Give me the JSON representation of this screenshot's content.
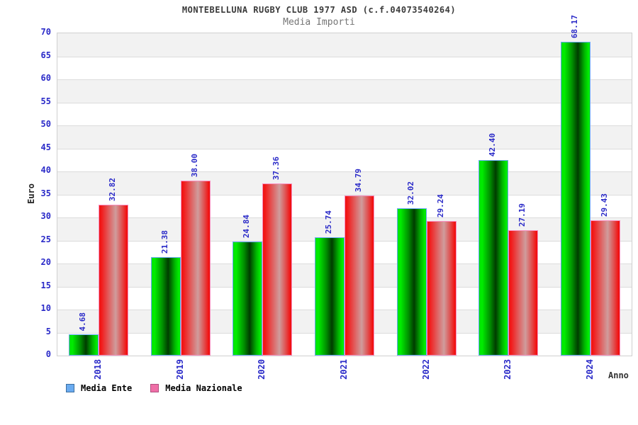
{
  "header": {
    "title": "MONTEBELLUNA RUGBY CLUB 1977 ASD (c.f.04073540264)",
    "subtitle": "Media Importi"
  },
  "chart_data": {
    "type": "bar",
    "title": "MONTEBELLUNA RUGBY CLUB 1977 ASD (c.f.04073540264)",
    "subtitle": "Media Importi",
    "xlabel": "Anno",
    "ylabel": "Euro",
    "ylim": [
      0,
      70
    ],
    "ytick_step": 5,
    "yticks": [
      "0",
      "5",
      "10",
      "15",
      "20",
      "25",
      "30",
      "35",
      "40",
      "45",
      "50",
      "55",
      "60",
      "65",
      "70"
    ],
    "grid": true,
    "plot_bands": "alternating gray/white horizontal bands every 5 units",
    "legend_position": "bottom-left",
    "categories": [
      "2018",
      "2019",
      "2020",
      "2021",
      "2022",
      "2023",
      "2024"
    ],
    "series": [
      {
        "name": "Media Ente",
        "values": [
          4.68,
          21.38,
          24.84,
          25.74,
          32.02,
          42.4,
          68.17
        ],
        "labels": [
          "4.68",
          "21.38",
          "24.84",
          "25.74",
          "32.02",
          "42.40",
          "68.17"
        ],
        "bar_style": "green",
        "legend_color": "#6aabf0",
        "legend_border": "#3c6e9f"
      },
      {
        "name": "Media Nazionale",
        "values": [
          32.82,
          38.0,
          37.36,
          34.79,
          29.24,
          27.19,
          29.43
        ],
        "labels": [
          "32.82",
          "38.00",
          "37.36",
          "34.79",
          "29.24",
          "27.19",
          "29.43"
        ],
        "bar_style": "red",
        "legend_color": "#ef6fa7",
        "legend_border": "#b05080"
      }
    ]
  },
  "colors": {
    "tick_label": "#2a2ac8",
    "value_label": "#2a2ac8",
    "band_gray": "#f2f2f2",
    "gridline": "#dcdcdc",
    "plot_border": "#d0d0d0",
    "green_bright": "#00ee00",
    "green_dark": "#003c00",
    "green_bar_border": "#69aaf5",
    "red_bright": "#f21212",
    "red_light_center": "#cf9c9c",
    "red_bar_border": "#f98fc0"
  }
}
